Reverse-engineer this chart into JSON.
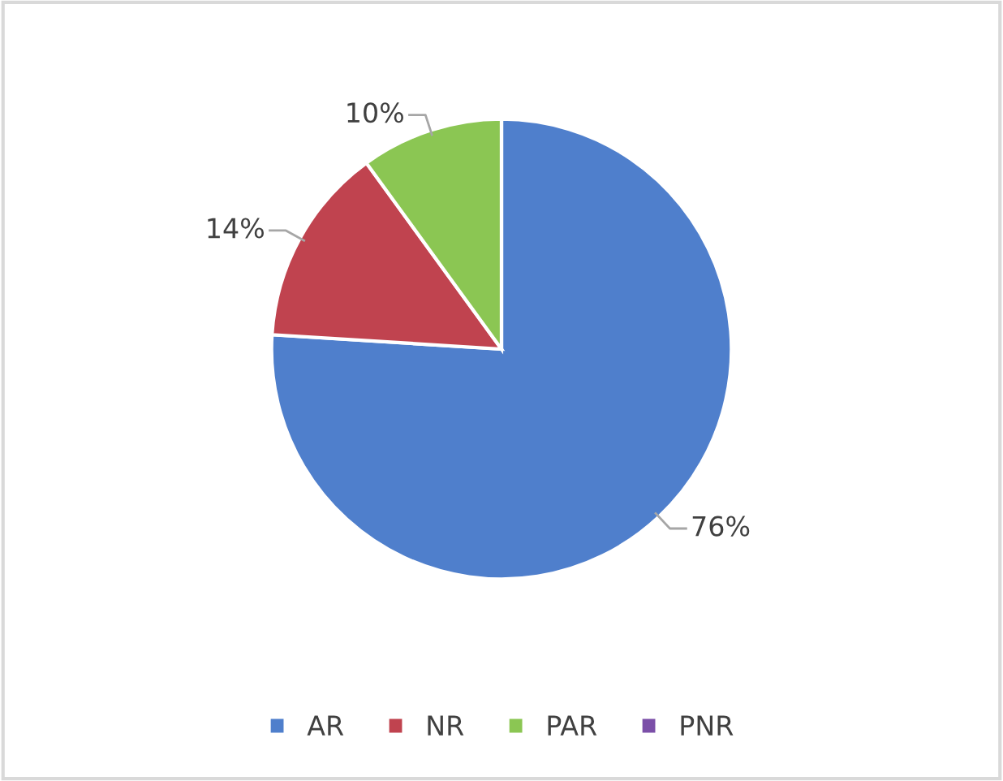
{
  "chart_data": {
    "type": "pie",
    "categories": [
      "AR",
      "NR",
      "PAR",
      "PNR"
    ],
    "values": [
      76,
      14,
      10,
      0
    ],
    "colors": [
      "#4f7fcc",
      "#c0434f",
      "#8bc653",
      "#7b4fa8"
    ],
    "value_labels": [
      "76%",
      "14%",
      "10%",
      null
    ],
    "legend": "bottom"
  }
}
